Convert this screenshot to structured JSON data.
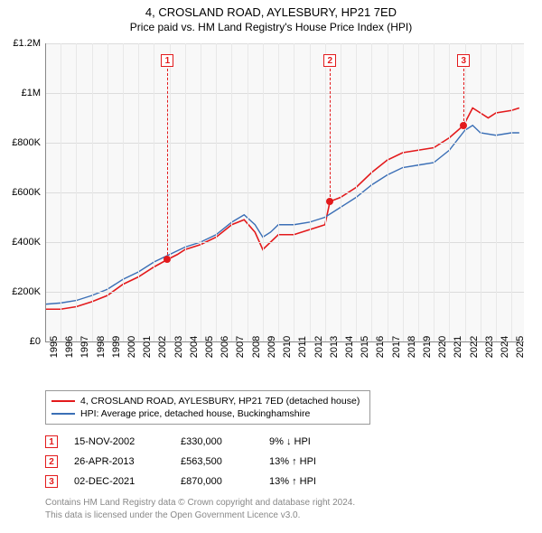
{
  "title": "4, CROSLAND ROAD, AYLESBURY, HP21 7ED",
  "subtitle": "Price paid vs. HM Land Registry's House Price Index (HPI)",
  "chart": {
    "type": "line",
    "background_color": "#f8f8f8",
    "grid_color": "#dcdcdc",
    "y": {
      "min": 0,
      "max": 1200000,
      "ticks": [
        0,
        200000,
        400000,
        600000,
        800000,
        1000000,
        1200000
      ],
      "tick_labels": [
        "£0",
        "£200K",
        "£400K",
        "£600K",
        "£800K",
        "£1M",
        "£1.2M"
      ]
    },
    "x": {
      "min": 1995,
      "max": 2025.8,
      "ticks": [
        1995,
        1996,
        1997,
        1998,
        1999,
        2000,
        2001,
        2002,
        2003,
        2004,
        2005,
        2006,
        2007,
        2008,
        2009,
        2010,
        2011,
        2012,
        2013,
        2014,
        2015,
        2016,
        2017,
        2018,
        2019,
        2020,
        2021,
        2022,
        2023,
        2024,
        2025
      ],
      "tick_labels": [
        "1995",
        "1996",
        "1997",
        "1998",
        "1999",
        "2000",
        "2001",
        "2002",
        "2003",
        "2004",
        "2005",
        "2006",
        "2007",
        "2008",
        "2009",
        "2010",
        "2011",
        "2012",
        "2013",
        "2014",
        "2015",
        "2016",
        "2017",
        "2018",
        "2019",
        "2020",
        "2021",
        "2022",
        "2023",
        "2024",
        "2025"
      ]
    },
    "series": [
      {
        "name": "price_paid",
        "label": "4, CROSLAND ROAD, AYLESBURY, HP21 7ED (detached house)",
        "color": "#e31a1c",
        "linewidth": 1.6,
        "points": [
          [
            1995.0,
            130000
          ],
          [
            1996.0,
            130000
          ],
          [
            1997.0,
            140000
          ],
          [
            1998.0,
            160000
          ],
          [
            1999.0,
            185000
          ],
          [
            2000.0,
            230000
          ],
          [
            2001.0,
            260000
          ],
          [
            2002.0,
            300000
          ],
          [
            2002.87,
            330000
          ],
          [
            2003.5,
            350000
          ],
          [
            2004.0,
            370000
          ],
          [
            2005.0,
            390000
          ],
          [
            2006.0,
            420000
          ],
          [
            2007.0,
            470000
          ],
          [
            2007.8,
            490000
          ],
          [
            2008.5,
            440000
          ],
          [
            2009.0,
            370000
          ],
          [
            2009.5,
            400000
          ],
          [
            2010.0,
            430000
          ],
          [
            2011.0,
            430000
          ],
          [
            2012.0,
            450000
          ],
          [
            2013.0,
            470000
          ],
          [
            2013.32,
            563500
          ],
          [
            2014.0,
            580000
          ],
          [
            2015.0,
            620000
          ],
          [
            2016.0,
            680000
          ],
          [
            2017.0,
            730000
          ],
          [
            2018.0,
            760000
          ],
          [
            2019.0,
            770000
          ],
          [
            2020.0,
            780000
          ],
          [
            2021.0,
            820000
          ],
          [
            2021.92,
            870000
          ],
          [
            2022.5,
            940000
          ],
          [
            2023.0,
            920000
          ],
          [
            2023.5,
            900000
          ],
          [
            2024.0,
            920000
          ],
          [
            2025.0,
            930000
          ],
          [
            2025.5,
            940000
          ]
        ]
      },
      {
        "name": "hpi",
        "label": "HPI: Average price, detached house, Buckinghamshire",
        "color": "#3b6fb6",
        "linewidth": 1.4,
        "points": [
          [
            1995.0,
            150000
          ],
          [
            1996.0,
            155000
          ],
          [
            1997.0,
            165000
          ],
          [
            1998.0,
            185000
          ],
          [
            1999.0,
            210000
          ],
          [
            2000.0,
            250000
          ],
          [
            2001.0,
            280000
          ],
          [
            2002.0,
            320000
          ],
          [
            2003.0,
            350000
          ],
          [
            2004.0,
            380000
          ],
          [
            2005.0,
            400000
          ],
          [
            2006.0,
            430000
          ],
          [
            2007.0,
            480000
          ],
          [
            2007.8,
            510000
          ],
          [
            2008.5,
            470000
          ],
          [
            2009.0,
            420000
          ],
          [
            2009.5,
            440000
          ],
          [
            2010.0,
            470000
          ],
          [
            2011.0,
            470000
          ],
          [
            2012.0,
            480000
          ],
          [
            2013.0,
            500000
          ],
          [
            2014.0,
            540000
          ],
          [
            2015.0,
            580000
          ],
          [
            2016.0,
            630000
          ],
          [
            2017.0,
            670000
          ],
          [
            2018.0,
            700000
          ],
          [
            2019.0,
            710000
          ],
          [
            2020.0,
            720000
          ],
          [
            2021.0,
            770000
          ],
          [
            2022.0,
            850000
          ],
          [
            2022.5,
            870000
          ],
          [
            2023.0,
            840000
          ],
          [
            2024.0,
            830000
          ],
          [
            2025.0,
            840000
          ],
          [
            2025.5,
            840000
          ]
        ]
      }
    ],
    "markers": [
      {
        "n": "1",
        "x": 2002.87,
        "y": 330000,
        "color": "#e31a1c"
      },
      {
        "n": "2",
        "x": 2013.32,
        "y": 563500,
        "color": "#e31a1c"
      },
      {
        "n": "3",
        "x": 2021.92,
        "y": 870000,
        "color": "#e31a1c"
      }
    ]
  },
  "legend": {
    "items": [
      {
        "color": "#e31a1c",
        "label": "4, CROSLAND ROAD, AYLESBURY, HP21 7ED (detached house)"
      },
      {
        "color": "#3b6fb6",
        "label": "HPI: Average price, detached house, Buckinghamshire"
      }
    ]
  },
  "sales": [
    {
      "n": "1",
      "color": "#e31a1c",
      "date": "15-NOV-2002",
      "price": "£330,000",
      "pct": "9%",
      "arrow": "↓",
      "suffix": "HPI"
    },
    {
      "n": "2",
      "color": "#e31a1c",
      "date": "26-APR-2013",
      "price": "£563,500",
      "pct": "13%",
      "arrow": "↑",
      "suffix": "HPI"
    },
    {
      "n": "3",
      "color": "#e31a1c",
      "date": "02-DEC-2021",
      "price": "£870,000",
      "pct": "13%",
      "arrow": "↑",
      "suffix": "HPI"
    }
  ],
  "footer": {
    "line1": "Contains HM Land Registry data © Crown copyright and database right 2024.",
    "line2": "This data is licensed under the Open Government Licence v3.0."
  }
}
